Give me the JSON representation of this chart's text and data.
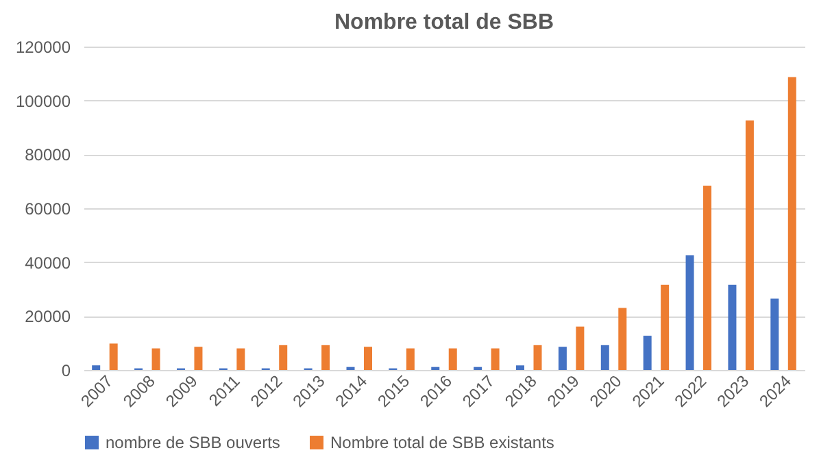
{
  "chart_data": {
    "type": "bar",
    "title": "Nombre total de SBB",
    "categories": [
      "2007",
      "2008",
      "2009",
      "2011",
      "2012",
      "2013",
      "2014",
      "2015",
      "2016",
      "2017",
      "2018",
      "2019",
      "2020",
      "2021",
      "2022",
      "2023",
      "2024"
    ],
    "series": [
      {
        "name": "nombre de SBB ouverts",
        "color": "#4472c4",
        "values": [
          1700,
          600,
          600,
          600,
          600,
          600,
          1100,
          600,
          1100,
          1100,
          1700,
          8600,
          9200,
          12700,
          42600,
          31600,
          26500
        ]
      },
      {
        "name": "Nombre total de SBB existants",
        "color": "#ed7d31",
        "values": [
          9800,
          8000,
          8600,
          8000,
          9200,
          9200,
          8600,
          8000,
          8000,
          8000,
          9200,
          16100,
          23000,
          31600,
          68400,
          92600,
          108700
        ]
      }
    ],
    "ylim": [
      0,
      120000
    ],
    "yticks": [
      0,
      20000,
      40000,
      60000,
      80000,
      100000,
      120000
    ],
    "grid": "y",
    "legend": "bottom"
  }
}
